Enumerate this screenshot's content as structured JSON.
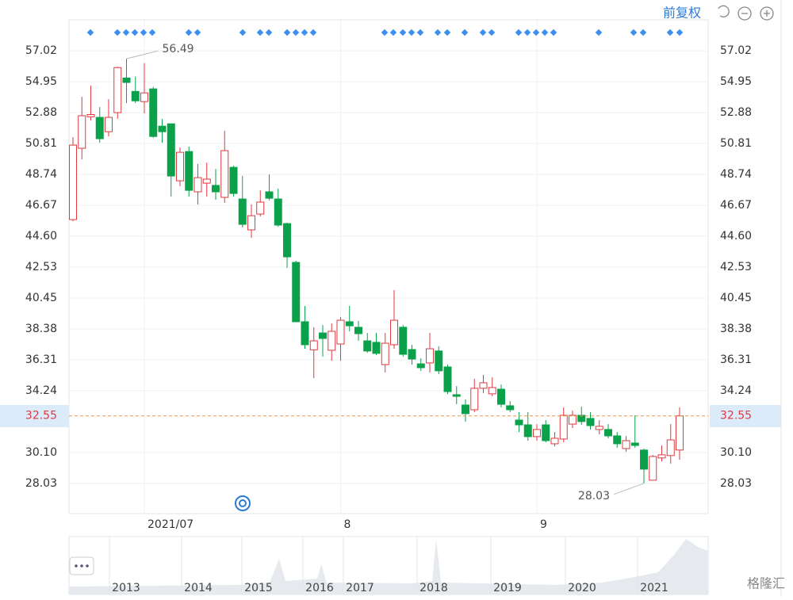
{
  "chart_data": {
    "type": "candlestick",
    "adjust_label": "前复权",
    "categories": [
      null,
      null,
      null,
      null,
      null,
      null,
      null,
      null,
      "2021/07",
      null,
      null,
      null,
      null,
      null,
      null,
      null,
      null,
      null,
      null,
      null,
      null,
      null,
      null,
      null,
      null,
      null,
      null,
      null,
      null,
      null,
      "8",
      null,
      null,
      null,
      null,
      null,
      null,
      null,
      null,
      null,
      null,
      null,
      null,
      null,
      null,
      null,
      null,
      null,
      null,
      null,
      null,
      null,
      "9",
      null,
      null,
      null,
      null,
      null,
      null,
      null,
      null,
      null,
      null,
      null,
      null,
      null,
      null,
      null,
      null
    ],
    "open": [
      45.71,
      50.49,
      52.6,
      52.56,
      51.6,
      52.88,
      55.2,
      54.3,
      53.62,
      54.47,
      51.97,
      52.13,
      48.31,
      50.27,
      47.57,
      48.15,
      48.0,
      47.2,
      49.21,
      47.09,
      45.02,
      46.08,
      47.57,
      47.09,
      45.44,
      42.84,
      38.86,
      36.98,
      38.11,
      36.95,
      37.37,
      38.86,
      38.49,
      37.58,
      37.48,
      35.99,
      37.32,
      38.49,
      37.0,
      36.04,
      36.1,
      36.9,
      35.83,
      33.97,
      33.28,
      32.96,
      34.4,
      34.03,
      34.34,
      33.23,
      32.27,
      31.95,
      31.16,
      31.95,
      30.68,
      31.0,
      32.0,
      32.59,
      32.38,
      31.64,
      31.64,
      31.21,
      30.36,
      30.73,
      30.26,
      28.24,
      29.73,
      29.89,
      30.26
    ],
    "close": [
      50.7,
      52.67,
      52.75,
      51.13,
      52.56,
      55.9,
      54.9,
      53.67,
      54.2,
      51.28,
      51.6,
      48.63,
      50.22,
      47.67,
      48.52,
      48.42,
      47.57,
      50.33,
      47.46,
      45.39,
      45.97,
      46.88,
      47.14,
      45.34,
      43.21,
      38.86,
      37.32,
      37.58,
      37.74,
      38.22,
      38.96,
      38.59,
      38.06,
      36.9,
      36.74,
      37.42,
      38.96,
      36.68,
      36.36,
      35.78,
      37.05,
      35.57,
      34.18,
      33.86,
      32.7,
      34.4,
      34.77,
      34.45,
      33.33,
      32.96,
      31.95,
      31.16,
      31.64,
      30.89,
      31.05,
      32.59,
      32.59,
      32.17,
      31.9,
      31.85,
      31.21,
      30.68,
      30.89,
      30.57,
      28.98,
      29.83,
      29.94,
      30.94,
      32.55
    ],
    "high": [
      51.23,
      53.94,
      54.68,
      53.25,
      53.78,
      55.96,
      56.49,
      55.3,
      56.2,
      54.6,
      52.45,
      52.13,
      50.54,
      50.6,
      49.43,
      49.53,
      49.11,
      51.66,
      49.32,
      48.63,
      46.72,
      47.67,
      48.73,
      47.78,
      45.5,
      42.95,
      39.92,
      38.49,
      38.64,
      38.75,
      39.18,
      39.92,
      38.91,
      38.11,
      38.11,
      38.11,
      40.98,
      38.64,
      37.32,
      36.41,
      38.11,
      37.21,
      35.99,
      34.55,
      33.65,
      35.03,
      35.3,
      35.14,
      34.66,
      33.54,
      32.8,
      32.8,
      32.0,
      32.27,
      31.47,
      33.12,
      32.9,
      33.17,
      32.8,
      32.27,
      32.0,
      31.47,
      31.2,
      32.59,
      30.36,
      29.93,
      30.57,
      32.0,
      33.12
    ],
    "low": [
      45.6,
      49.75,
      52.35,
      50.86,
      51.29,
      52.46,
      53.52,
      53.52,
      52.83,
      51.19,
      50.86,
      47.25,
      47.94,
      47.25,
      46.72,
      47.25,
      47.04,
      46.83,
      47.25,
      45.18,
      44.49,
      45.92,
      46.99,
      45.23,
      42.47,
      38.86,
      37.05,
      35.08,
      36.52,
      36.25,
      36.25,
      38.22,
      37.58,
      36.78,
      36.62,
      35.46,
      37.05,
      36.52,
      35.99,
      35.56,
      35.46,
      35.35,
      34.02,
      33.33,
      32.16,
      32.8,
      34.07,
      33.86,
      33.12,
      32.8,
      31.47,
      30.89,
      30.89,
      30.78,
      30.51,
      30.78,
      31.74,
      31.95,
      31.63,
      31.31,
      31.05,
      30.41,
      30.14,
      30.41,
      28.03,
      28.24,
      29.5,
      29.35,
      29.61
    ],
    "up_color": "#e0393e",
    "down_color": "#0ba14b",
    "ylim": [
      26.0,
      59.1
    ],
    "yticks": [
      28.03,
      {
        "value": 30.1,
        "label": "30.10"
      },
      34.24,
      36.31,
      38.38,
      40.45,
      42.53,
      {
        "value": 44.6,
        "label": "44.60"
      },
      46.67,
      48.74,
      50.81,
      52.88,
      54.95,
      57.02
    ],
    "last_price": 32.55,
    "max_label": 56.49,
    "max_index": 6,
    "min_label": 28.03,
    "min_index": 64,
    "navigator_years": [
      "2013",
      "2014",
      "2015",
      "2016",
      "2017",
      "2018",
      "2019",
      "2020",
      "2021"
    ],
    "watermark": "格隆汇",
    "grid": true
  }
}
